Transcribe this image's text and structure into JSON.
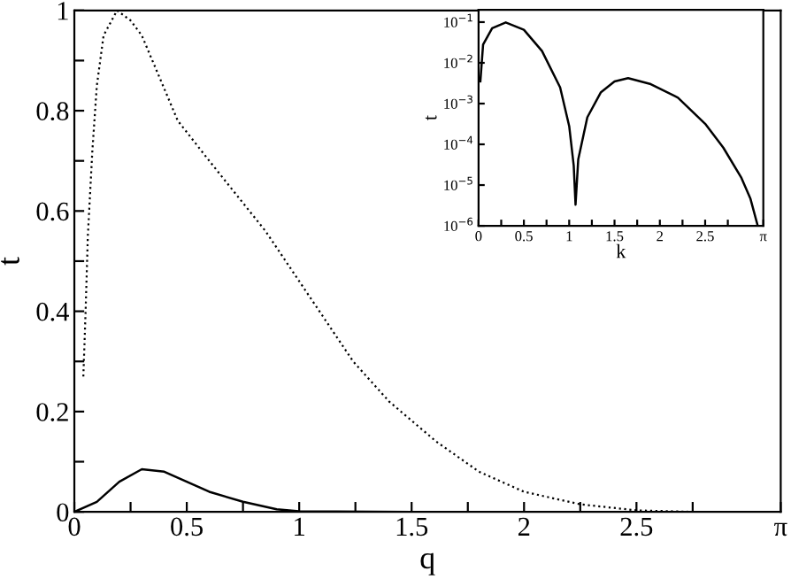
{
  "chart_data": [
    {
      "type": "line",
      "xlabel": "q",
      "ylabel": "t",
      "xlim": [
        0,
        3.14159
      ],
      "ylim": [
        0,
        1
      ],
      "xticks": [
        0,
        {
          "value": 0.25,
          "label": null
        },
        0.5,
        {
          "value": 0.75,
          "label": null
        },
        1,
        {
          "value": 1.25,
          "label": null
        },
        1.5,
        {
          "value": 1.75,
          "label": null
        },
        2,
        {
          "value": 2.25,
          "label": null
        },
        2.5,
        {
          "value": 2.75,
          "label": null
        },
        {
          "value": 3.14159,
          "label": "π"
        }
      ],
      "yticks": [
        0,
        {
          "value": 0.1,
          "label": null
        },
        0.2,
        {
          "value": 0.3,
          "label": null
        },
        0.4,
        {
          "value": 0.5,
          "label": null
        },
        0.6,
        {
          "value": 0.7,
          "label": null
        },
        0.8,
        {
          "value": 0.9,
          "label": null
        },
        1
      ],
      "series": [
        {
          "color": "#000000",
          "line_style": "dotted",
          "x": [
            0.04,
            0.05,
            0.06,
            0.08,
            0.1,
            0.13,
            0.19,
            0.25,
            0.3,
            0.46,
            0.6,
            0.85,
            1.0,
            1.24,
            1.4,
            1.61,
            1.8,
            2.0,
            2.25,
            2.5,
            2.75,
            3.14
          ],
          "values": [
            0.27,
            0.4,
            0.55,
            0.72,
            0.85,
            0.95,
            1.0,
            0.98,
            0.95,
            0.78,
            0.7,
            0.56,
            0.46,
            0.3,
            0.22,
            0.14,
            0.08,
            0.04,
            0.015,
            0.003,
            0,
            0
          ]
        },
        {
          "color": "#000000",
          "line_style": "solid",
          "x": [
            0,
            0.1,
            0.2,
            0.3,
            0.4,
            0.5,
            0.6,
            0.75,
            0.9,
            1.0,
            1.5,
            2.0,
            2.5,
            3.14
          ],
          "values": [
            0,
            0.02,
            0.06,
            0.085,
            0.08,
            0.06,
            0.04,
            0.02,
            0.005,
            0.001,
            0,
            0,
            0,
            0
          ]
        }
      ]
    },
    {
      "type": "line",
      "xlabel": "k",
      "ylabel": "t",
      "log": "y",
      "xlim": [
        0,
        3.14159
      ],
      "ylim": [
        1e-06,
        0.2
      ],
      "xticks": [
        0,
        {
          "value": 0.25,
          "label": null
        },
        0.5,
        {
          "value": 0.75,
          "label": null
        },
        1,
        {
          "value": 1.25,
          "label": null
        },
        1.5,
        {
          "value": 1.75,
          "label": null
        },
        2,
        {
          "value": 2.25,
          "label": null
        },
        2.5,
        {
          "value": 2.75,
          "label": null
        },
        {
          "value": 3.14159,
          "label": "π"
        }
      ],
      "yticks": [
        {
          "value": 1e-06,
          "label": "10$^{−6}$"
        },
        {
          "value": 1e-05,
          "label": "10$^{−5}$"
        },
        {
          "value": 0.0001,
          "label": "10$^{−4}$"
        },
        {
          "value": 0.001,
          "label": "10$^{−3}$"
        },
        {
          "value": 0.01,
          "label": "10$^{−2}$"
        },
        {
          "value": 0.1,
          "label": "10$^{−1}$"
        }
      ],
      "series": [
        {
          "color": "#000000",
          "line_style": "solid",
          "x": [
            0.02,
            0.05,
            0.15,
            0.3,
            0.5,
            0.7,
            0.9,
            1.0,
            1.05,
            1.07,
            1.1,
            1.2,
            1.35,
            1.5,
            1.65,
            1.9,
            2.2,
            2.5,
            2.7,
            2.9,
            3.0,
            3.08
          ],
          "values": [
            0.0035,
            0.028,
            0.071,
            0.098,
            0.065,
            0.0195,
            0.0025,
            0.00028,
            3e-05,
            3.3e-06,
            4.3e-05,
            0.00046,
            0.0019,
            0.0035,
            0.0042,
            0.003,
            0.0014,
            0.00032,
            8.3e-05,
            1.5e-05,
            4.6e-06,
            1e-06
          ]
        }
      ]
    }
  ]
}
